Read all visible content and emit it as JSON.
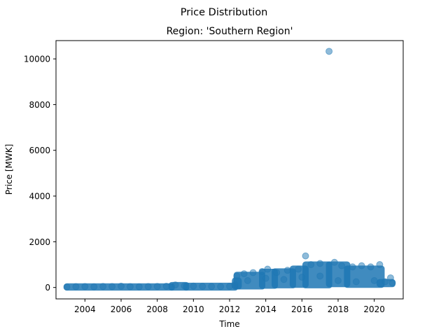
{
  "chart_data": {
    "type": "scatter",
    "suptitle": "Price Distribution",
    "title": "Region: 'Southern Region'",
    "xlabel": "Time",
    "ylabel": "Price [MWK]",
    "xlim": [
      2002.4,
      2021.6
    ],
    "ylim": [
      -500,
      10800
    ],
    "xticks": [
      2004,
      2006,
      2008,
      2010,
      2012,
      2014,
      2016,
      2018,
      2020
    ],
    "xtick_labels": [
      "2004",
      "2006",
      "2008",
      "2010",
      "2012",
      "2014",
      "2016",
      "2018",
      "2020"
    ],
    "yticks": [
      0,
      2000,
      4000,
      6000,
      8000,
      10000
    ],
    "ytick_labels": [
      "0",
      "2000",
      "4000",
      "6000",
      "8000",
      "10000"
    ],
    "grid": false,
    "legend": "none",
    "marker_color": "#1f77b4",
    "marker_alpha": 0.5,
    "points": [
      {
        "x": 2003.0,
        "y": 20
      },
      {
        "x": 2003.5,
        "y": 35
      },
      {
        "x": 2004.0,
        "y": 40
      },
      {
        "x": 2004.5,
        "y": 30
      },
      {
        "x": 2005.0,
        "y": 45
      },
      {
        "x": 2005.5,
        "y": 40
      },
      {
        "x": 2006.0,
        "y": 55
      },
      {
        "x": 2006.5,
        "y": 35
      },
      {
        "x": 2007.0,
        "y": 30
      },
      {
        "x": 2007.5,
        "y": 40
      },
      {
        "x": 2008.0,
        "y": 45
      },
      {
        "x": 2008.5,
        "y": 50
      },
      {
        "x": 2009.0,
        "y": 110
      },
      {
        "x": 2009.5,
        "y": 70
      },
      {
        "x": 2010.0,
        "y": 60
      },
      {
        "x": 2010.5,
        "y": 50
      },
      {
        "x": 2011.0,
        "y": 45
      },
      {
        "x": 2011.5,
        "y": 40
      },
      {
        "x": 2012.0,
        "y": 50
      },
      {
        "x": 2012.3,
        "y": 120
      },
      {
        "x": 2012.4,
        "y": 500
      },
      {
        "x": 2012.8,
        "y": 600
      },
      {
        "x": 2013.3,
        "y": 650
      },
      {
        "x": 2013.8,
        "y": 700
      },
      {
        "x": 2014.1,
        "y": 800
      },
      {
        "x": 2014.6,
        "y": 650
      },
      {
        "x": 2015.2,
        "y": 750
      },
      {
        "x": 2015.8,
        "y": 800
      },
      {
        "x": 2016.2,
        "y": 1380
      },
      {
        "x": 2016.5,
        "y": 1000
      },
      {
        "x": 2017.0,
        "y": 1050
      },
      {
        "x": 2017.5,
        "y": 10330
      },
      {
        "x": 2017.8,
        "y": 1100
      },
      {
        "x": 2018.2,
        "y": 950
      },
      {
        "x": 2018.8,
        "y": 900
      },
      {
        "x": 2019.3,
        "y": 950
      },
      {
        "x": 2019.8,
        "y": 900
      },
      {
        "x": 2020.3,
        "y": 1000
      },
      {
        "x": 2020.6,
        "y": 250
      },
      {
        "x": 2020.9,
        "y": 420
      },
      {
        "x": 2021.0,
        "y": 200
      },
      {
        "x": 2013.0,
        "y": 300
      },
      {
        "x": 2014.0,
        "y": 400
      },
      {
        "x": 2015.0,
        "y": 350
      },
      {
        "x": 2016.0,
        "y": 450
      },
      {
        "x": 2017.0,
        "y": 500
      },
      {
        "x": 2018.0,
        "y": 300
      },
      {
        "x": 2019.0,
        "y": 250
      },
      {
        "x": 2020.0,
        "y": 300
      }
    ],
    "bands": [
      {
        "x0": 2003.0,
        "x1": 2008.8,
        "y0": 0,
        "y1": 45
      },
      {
        "x0": 2008.8,
        "x1": 2009.6,
        "y0": 0,
        "y1": 100
      },
      {
        "x0": 2009.6,
        "x1": 2012.3,
        "y0": 0,
        "y1": 70
      },
      {
        "x0": 2012.3,
        "x1": 2012.5,
        "y0": 50,
        "y1": 300
      },
      {
        "x0": 2012.4,
        "x1": 2013.8,
        "y0": 50,
        "y1": 550
      },
      {
        "x0": 2013.8,
        "x1": 2014.5,
        "y0": 80,
        "y1": 680
      },
      {
        "x0": 2014.5,
        "x1": 2015.5,
        "y0": 100,
        "y1": 700
      },
      {
        "x0": 2015.5,
        "x1": 2016.2,
        "y0": 120,
        "y1": 820
      },
      {
        "x0": 2016.2,
        "x1": 2017.5,
        "y0": 100,
        "y1": 1000
      },
      {
        "x0": 2017.5,
        "x1": 2018.5,
        "y0": 150,
        "y1": 1000
      },
      {
        "x0": 2018.5,
        "x1": 2020.4,
        "y0": 120,
        "y1": 820
      },
      {
        "x0": 2020.3,
        "x1": 2021.0,
        "y0": 150,
        "y1": 230
      }
    ]
  }
}
